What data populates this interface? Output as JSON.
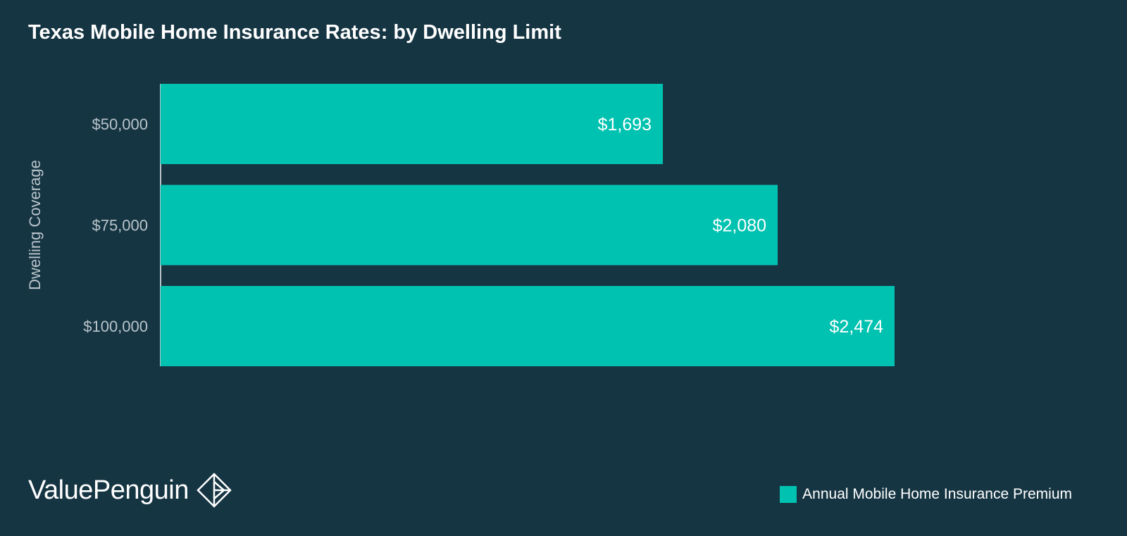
{
  "chart_data": {
    "type": "bar",
    "orientation": "horizontal",
    "title": "Texas Mobile Home Insurance Rates: by Dwelling Limit",
    "ylabel": "Dwelling Coverage",
    "xlabel": "",
    "categories": [
      "$50,000",
      "$75,000",
      "$100,000"
    ],
    "series": [
      {
        "name": "Annual Mobile Home Insurance Premium",
        "values": [
          1693,
          2080,
          2474
        ],
        "labels": [
          "$1,693",
          "$2,080",
          "$2,474"
        ]
      }
    ],
    "xlim": [
      0,
      2474
    ],
    "grid": false,
    "legend_position": "bottom-right"
  },
  "colors": {
    "background": "#163543",
    "bar": "#00c2b0",
    "axis_line": "#b9c4ca"
  },
  "branding": {
    "name": "ValuePenguin",
    "logo_icon": "valuepenguin-logo-icon"
  }
}
